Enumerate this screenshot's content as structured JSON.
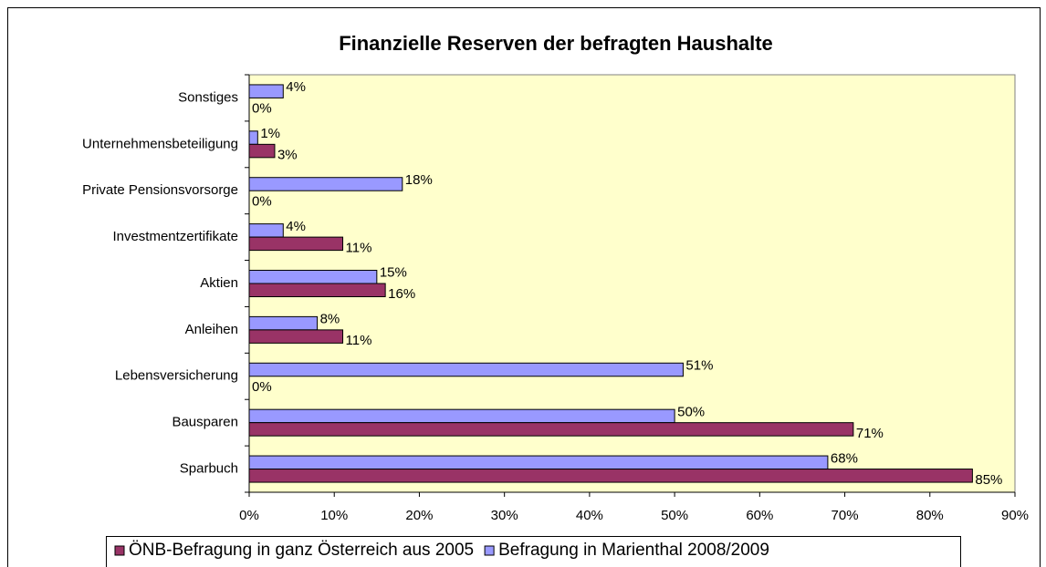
{
  "chart_data": {
    "type": "bar",
    "orientation": "horizontal",
    "title": "Finanzielle Reserven der befragten Haushalte",
    "categories": [
      "Sparbuch",
      "Bausparen",
      "Lebensversicherung",
      "Anleihen",
      "Aktien",
      "Investmentzertifikate",
      "Private Pensionsvorsorge",
      "Unternehmensbeteiligung",
      "Sonstiges"
    ],
    "series": [
      {
        "name": "ÖNB-Befragung in ganz Österreich aus 2005",
        "color": "#993366",
        "values": [
          85,
          71,
          0,
          11,
          16,
          11,
          0,
          3,
          0
        ],
        "value_labels": [
          "85%",
          "71%",
          "0%",
          "11%",
          "16%",
          "11%",
          "0%",
          "3%",
          "0%"
        ]
      },
      {
        "name": "Befragung in Marienthal 2008/2009",
        "color": "#9999FF",
        "values": [
          68,
          50,
          51,
          8,
          15,
          4,
          18,
          1,
          4
        ],
        "value_labels": [
          "68%",
          "50%",
          "51%",
          "8%",
          "15%",
          "4%",
          "18%",
          "1%",
          "4%"
        ]
      }
    ],
    "xlim": [
      0,
      90
    ],
    "xticks": [
      {
        "value": 0,
        "label": "0%"
      },
      {
        "value": 10,
        "label": "10%"
      },
      {
        "value": 20,
        "label": "20%"
      },
      {
        "value": 30,
        "label": "30%"
      },
      {
        "value": 40,
        "label": "40%"
      },
      {
        "value": 50,
        "label": "50%"
      },
      {
        "value": 60,
        "label": "60%"
      },
      {
        "value": 70,
        "label": "70%"
      },
      {
        "value": 80,
        "label": "80%"
      },
      {
        "value": 90,
        "label": "90%"
      }
    ],
    "plot_background": "#FFFFCC",
    "legend": "bottom"
  }
}
